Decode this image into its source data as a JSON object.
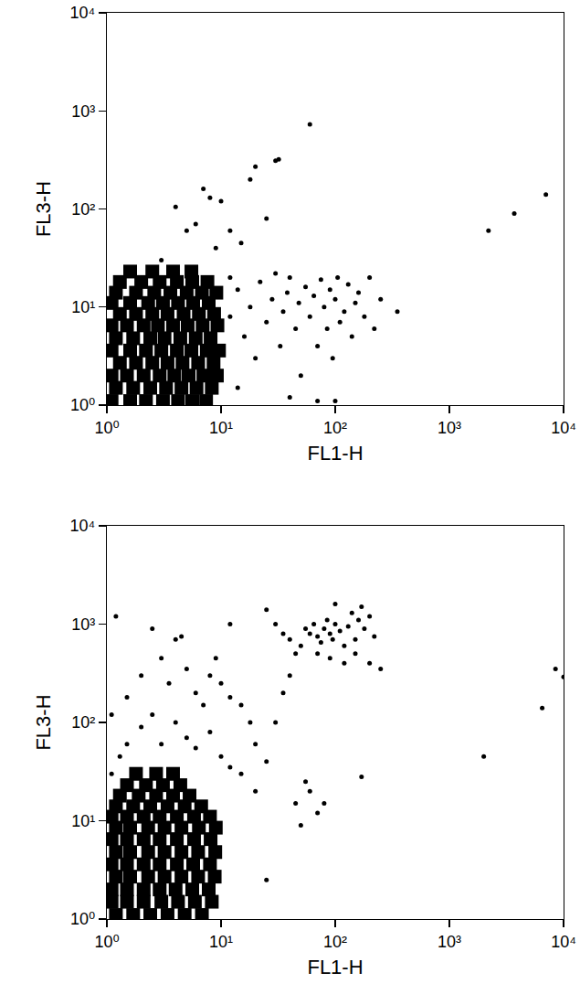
{
  "chart_data": [
    {
      "type": "scatter",
      "x_label": "FL1-H",
      "y_label": "FL3-H",
      "log": true,
      "xlim": [
        1,
        10000
      ],
      "ylim": [
        1,
        10000
      ],
      "xticks": [
        {
          "value": 1,
          "label": "10⁰"
        },
        {
          "value": 10,
          "label": "10¹"
        },
        {
          "value": 100,
          "label": "10²"
        },
        {
          "value": 1000,
          "label": "10³"
        },
        {
          "value": 10000,
          "label": "10⁴"
        }
      ],
      "yticks": [
        {
          "value": 1,
          "label": "10⁰"
        },
        {
          "value": 10,
          "label": "10¹"
        },
        {
          "value": 100,
          "label": "10²"
        },
        {
          "value": 1000,
          "label": "10³"
        },
        {
          "value": 10000,
          "label": "10⁴"
        }
      ],
      "grid": false,
      "tick_labels": true,
      "series": [
        {
          "color": "#000000",
          "marker": "square",
          "x": [
            1.1,
            1.6,
            2.2,
            3.1,
            4.2,
            5.6,
            7.4,
            1.2,
            1.7,
            2.4,
            3.3,
            4.5,
            6.1,
            8.3,
            1.1,
            1.5,
            2.1,
            2.9,
            3.9,
            5.2,
            7,
            9.2,
            1.3,
            1.8,
            2.5,
            3.4,
            4.6,
            6.3,
            8.6,
            1.1,
            1.6,
            2.2,
            3,
            4.1,
            5.5,
            7.5,
            9.6,
            1.2,
            1.7,
            2.4,
            3.2,
            4.4,
            6,
            8.1,
            1.1,
            1.5,
            2.1,
            2.8,
            3.8,
            5.1,
            6.9,
            9.3,
            1.3,
            1.8,
            2.5,
            3.4,
            4.7,
            6.4,
            8.7,
            1.1,
            1.6,
            2.3,
            3.1,
            4.2,
            5.7,
            7.8,
            1.2,
            1.8,
            2.6,
            3.6,
            5,
            6.8,
            9.1,
            1.3,
            2,
            2.9,
            4.1,
            5.6,
            7.6,
            1.6,
            2.5,
            3.8,
            5.5
          ],
          "values": [
            1.1,
            1.1,
            1.1,
            1.1,
            1.1,
            1.1,
            1.1,
            1.5,
            1.5,
            1.5,
            1.5,
            1.5,
            1.5,
            1.5,
            2,
            2,
            2,
            2,
            2,
            2,
            2,
            2,
            2.7,
            2.7,
            2.7,
            2.7,
            2.7,
            2.7,
            2.7,
            3.6,
            3.6,
            3.6,
            3.6,
            3.6,
            3.6,
            3.6,
            3.6,
            4.8,
            4.8,
            4.8,
            4.8,
            4.8,
            4.8,
            4.8,
            6.5,
            6.5,
            6.5,
            6.5,
            6.5,
            6.5,
            6.5,
            6.5,
            8.5,
            8.5,
            8.5,
            8.5,
            8.5,
            8.5,
            8.5,
            11,
            11,
            11,
            11,
            11,
            11,
            11,
            14,
            14,
            14,
            14,
            14,
            14,
            14,
            18,
            18,
            18,
            18,
            18,
            18,
            23,
            23,
            23,
            23
          ]
        },
        {
          "color": "#000000",
          "marker": "circle",
          "x": [
            12,
            14,
            16,
            18,
            20,
            22,
            25,
            28,
            30,
            33,
            35,
            38,
            40,
            45,
            48,
            50,
            55,
            60,
            65,
            70,
            75,
            80,
            85,
            90,
            95,
            100,
            105,
            110,
            120,
            130,
            140,
            150,
            160,
            180,
            200,
            220,
            250,
            350,
            14,
            40,
            100,
            70,
            12,
            4,
            7,
            8,
            10,
            12,
            18,
            20,
            25,
            30,
            32,
            60,
            5,
            6,
            2200,
            3700,
            7000,
            3,
            9,
            15
          ],
          "values": [
            8,
            15,
            5,
            10,
            3,
            18,
            7,
            12,
            22,
            4,
            9,
            14,
            20,
            6,
            11,
            2,
            16,
            8,
            13,
            4,
            19,
            10,
            6,
            15,
            3,
            12,
            20,
            7,
            9,
            17,
            5,
            11,
            14,
            8,
            20,
            6,
            12,
            9,
            1.5,
            1.2,
            1.1,
            1.1,
            20,
            105,
            160,
            130,
            120,
            60,
            200,
            270,
            80,
            310,
            320,
            730,
            60,
            70,
            60,
            90,
            140,
            30,
            40,
            45
          ]
        }
      ]
    },
    {
      "type": "scatter",
      "x_label": "FL1-H",
      "y_label": "FL3-H",
      "log": true,
      "xlim": [
        1,
        10000
      ],
      "ylim": [
        1,
        10000
      ],
      "xticks": [
        {
          "value": 1,
          "label": "10⁰"
        },
        {
          "value": 10,
          "label": "10¹"
        },
        {
          "value": 100,
          "label": "10²"
        },
        {
          "value": 1000,
          "label": "10³"
        },
        {
          "value": 10000,
          "label": "10⁴"
        }
      ],
      "yticks": [
        {
          "value": 1,
          "label": "10⁰"
        },
        {
          "value": 10,
          "label": "10¹"
        },
        {
          "value": 100,
          "label": "10²"
        },
        {
          "value": 1000,
          "label": "10³"
        },
        {
          "value": 10000,
          "label": "10⁴"
        }
      ],
      "grid": false,
      "tick_labels": true,
      "series": [
        {
          "color": "#000000",
          "marker": "square",
          "x": [
            1.2,
            1.7,
            2.4,
            3.4,
            4.8,
            6.8,
            1.1,
            1.5,
            2.1,
            3,
            4.2,
            5.9,
            8.3,
            1.1,
            1.5,
            2.1,
            2.9,
            4,
            5.6,
            7.8,
            1.2,
            1.6,
            2.3,
            3.2,
            4.5,
            6.3,
            8.8,
            1.1,
            1.5,
            2.1,
            2.9,
            4.1,
            5.7,
            8,
            1.2,
            1.6,
            2.3,
            3.2,
            4.5,
            6.3,
            8.9,
            1.1,
            1.5,
            2.1,
            2.9,
            4.1,
            5.8,
            8.1,
            1.2,
            1.6,
            2.3,
            3.2,
            4.5,
            6.4,
            9,
            1.1,
            1.5,
            2.1,
            2.9,
            4.1,
            5.8,
            8,
            1.2,
            1.7,
            2.4,
            3.4,
            4.8,
            6.7,
            1.3,
            1.9,
            2.7,
            3.8,
            5.3,
            1.5,
            2.2,
            3.1,
            4.4,
            1.8,
            2.7,
            3.8
          ],
          "values": [
            1.1,
            1.1,
            1.1,
            1.1,
            1.1,
            1.1,
            1.5,
            1.5,
            1.5,
            1.5,
            1.5,
            1.5,
            1.5,
            2,
            2,
            2,
            2,
            2,
            2,
            2,
            2.7,
            2.7,
            2.7,
            2.7,
            2.7,
            2.7,
            2.7,
            3.6,
            3.6,
            3.6,
            3.6,
            3.6,
            3.6,
            3.6,
            4.8,
            4.8,
            4.8,
            4.8,
            4.8,
            4.8,
            4.8,
            6.5,
            6.5,
            6.5,
            6.5,
            6.5,
            6.5,
            6.5,
            8.5,
            8.5,
            8.5,
            8.5,
            8.5,
            8.5,
            8.5,
            11,
            11,
            11,
            11,
            11,
            11,
            11,
            14,
            14,
            14,
            14,
            14,
            14,
            18,
            18,
            18,
            18,
            18,
            23,
            23,
            23,
            23,
            30,
            30,
            30
          ]
        },
        {
          "color": "#000000",
          "marker": "circle",
          "x": [
            40,
            50,
            55,
            60,
            65,
            70,
            75,
            80,
            85,
            90,
            95,
            100,
            100,
            110,
            120,
            130,
            140,
            150,
            160,
            170,
            180,
            200,
            220,
            250,
            200,
            150,
            120,
            90,
            70,
            30,
            25,
            35,
            45,
            12,
            1.2,
            1.1,
            1.5,
            2,
            2.5,
            3,
            3.5,
            4,
            4.5,
            5,
            6,
            7,
            8,
            9,
            10,
            12,
            15,
            18,
            20,
            25,
            30,
            35,
            40,
            45,
            50,
            55,
            60,
            70,
            80,
            1.5,
            2,
            2.5,
            3,
            4,
            5,
            6,
            8,
            10,
            12,
            15,
            20,
            25,
            170,
            2000,
            6500,
            8500,
            10000,
            1.1,
            1.3
          ],
          "values": [
            700,
            600,
            900,
            800,
            1000,
            750,
            650,
            900,
            1100,
            800,
            700,
            1000,
            1600,
            850,
            600,
            950,
            1300,
            700,
            1100,
            1500,
            900,
            1200,
            750,
            350,
            400,
            500,
            400,
            450,
            500,
            1000,
            1400,
            800,
            500,
            1000,
            1200,
            120,
            180,
            300,
            900,
            450,
            250,
            700,
            750,
            350,
            200,
            150,
            300,
            450,
            250,
            180,
            150,
            100,
            60,
            40,
            100,
            200,
            300,
            15,
            9,
            25,
            20,
            12,
            15,
            60,
            90,
            120,
            60,
            100,
            70,
            55,
            80,
            45,
            35,
            30,
            20,
            2.5,
            28,
            45,
            140,
            350,
            290,
            30,
            45
          ]
        }
      ]
    }
  ]
}
